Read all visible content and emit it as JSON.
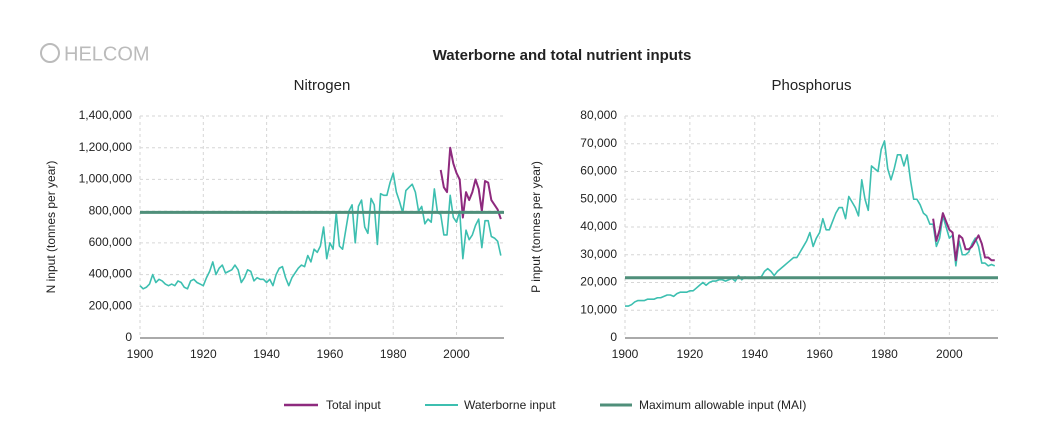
{
  "logo": "HELCOM",
  "title": "Waterborne and total nutrient inputs",
  "chart_data": [
    {
      "type": "line",
      "title": "Nitrogen",
      "y_label": "N input (tonnes per year)",
      "xlim": [
        1900,
        2015
      ],
      "ylim": [
        0,
        1400000
      ],
      "xticks": [
        1900,
        1920,
        1940,
        1960,
        1980,
        2000
      ],
      "yticks": [
        0,
        {
          "value": 200000,
          "label": "200,000"
        },
        {
          "value": 400000,
          "label": "400,000"
        },
        {
          "value": 600000,
          "label": "600,000"
        },
        {
          "value": 800000,
          "label": "800,000"
        },
        {
          "value": 1000000,
          "label": "1,000,000"
        },
        {
          "value": 1200000,
          "label": "1,200,000"
        },
        {
          "value": 1400000,
          "label": "1,400,000"
        }
      ],
      "grid": true,
      "x": [
        1900,
        1901,
        1902,
        1903,
        1904,
        1905,
        1906,
        1907,
        1908,
        1909,
        1910,
        1911,
        1912,
        1913,
        1914,
        1915,
        1916,
        1917,
        1918,
        1919,
        1920,
        1921,
        1922,
        1923,
        1924,
        1925,
        1926,
        1927,
        1928,
        1929,
        1930,
        1931,
        1932,
        1933,
        1934,
        1935,
        1936,
        1937,
        1938,
        1939,
        1940,
        1941,
        1942,
        1943,
        1944,
        1945,
        1946,
        1947,
        1948,
        1949,
        1950,
        1951,
        1952,
        1953,
        1954,
        1955,
        1956,
        1957,
        1958,
        1959,
        1960,
        1961,
        1962,
        1963,
        1964,
        1965,
        1966,
        1967,
        1968,
        1969,
        1970,
        1971,
        1972,
        1973,
        1974,
        1975,
        1976,
        1977,
        1978,
        1979,
        1980,
        1981,
        1982,
        1983,
        1984,
        1985,
        1986,
        1987,
        1988,
        1989,
        1990,
        1991,
        1992,
        1993,
        1994,
        1995,
        1996,
        1997,
        1998,
        1999,
        2000,
        2001,
        2002,
        2003,
        2004,
        2005,
        2006,
        2007,
        2008,
        2009,
        2010,
        2011,
        2012,
        2013,
        2014
      ],
      "series": [
        {
          "name": "Total input",
          "color": "#8e2a7e",
          "x": [
            1995,
            1996,
            1997,
            1998,
            1999,
            2000,
            2001,
            2002,
            2003,
            2004,
            2005,
            2006,
            2007,
            2008,
            2009,
            2010,
            2011,
            2012,
            2013,
            2014
          ],
          "values": [
            1060000,
            950000,
            920000,
            1200000,
            1100000,
            1040000,
            1000000,
            760000,
            920000,
            870000,
            920000,
            1000000,
            940000,
            800000,
            990000,
            980000,
            870000,
            840000,
            810000,
            750000
          ]
        },
        {
          "name": "Waterborne input",
          "color": "#3dbfb0",
          "values": [
            330000,
            310000,
            320000,
            340000,
            400000,
            350000,
            370000,
            360000,
            340000,
            330000,
            340000,
            330000,
            360000,
            350000,
            320000,
            310000,
            360000,
            370000,
            350000,
            340000,
            330000,
            380000,
            420000,
            480000,
            400000,
            440000,
            460000,
            410000,
            420000,
            430000,
            460000,
            430000,
            350000,
            380000,
            430000,
            420000,
            360000,
            380000,
            370000,
            370000,
            350000,
            370000,
            330000,
            400000,
            440000,
            450000,
            380000,
            330000,
            380000,
            410000,
            440000,
            460000,
            450000,
            520000,
            480000,
            560000,
            540000,
            580000,
            700000,
            500000,
            600000,
            560000,
            790000,
            580000,
            560000,
            680000,
            800000,
            840000,
            600000,
            830000,
            870000,
            700000,
            660000,
            880000,
            840000,
            590000,
            910000,
            900000,
            900000,
            980000,
            1040000,
            920000,
            860000,
            790000,
            930000,
            950000,
            970000,
            920000,
            800000,
            830000,
            720000,
            750000,
            730000,
            940000,
            790000,
            780000,
            650000,
            650000,
            900000,
            760000,
            730000,
            800000,
            500000,
            680000,
            620000,
            650000,
            710000,
            750000,
            570000,
            740000,
            740000,
            640000,
            630000,
            610000,
            520000
          ]
        },
        {
          "name": "Maximum allowable input (MAI)",
          "color": "#4f8f7a",
          "value": 792000
        }
      ]
    },
    {
      "type": "line",
      "title": "Phosphorus",
      "y_label": "P input (tonnes per year)",
      "xlim": [
        1900,
        2015
      ],
      "ylim": [
        0,
        80000
      ],
      "xticks": [
        1900,
        1920,
        1940,
        1960,
        1980,
        2000
      ],
      "yticks": [
        0,
        {
          "value": 10000,
          "label": "10,000"
        },
        {
          "value": 20000,
          "label": "20,000"
        },
        {
          "value": 30000,
          "label": "30,000"
        },
        {
          "value": 40000,
          "label": "40,000"
        },
        {
          "value": 50000,
          "label": "50,000"
        },
        {
          "value": 60000,
          "label": "60,000"
        },
        {
          "value": 70000,
          "label": "70,000"
        },
        {
          "value": 80000,
          "label": "80,000"
        }
      ],
      "grid": true,
      "x": [
        1900,
        1901,
        1902,
        1903,
        1904,
        1905,
        1906,
        1907,
        1908,
        1909,
        1910,
        1911,
        1912,
        1913,
        1914,
        1915,
        1916,
        1917,
        1918,
        1919,
        1920,
        1921,
        1922,
        1923,
        1924,
        1925,
        1926,
        1927,
        1928,
        1929,
        1930,
        1931,
        1932,
        1933,
        1934,
        1935,
        1936,
        1937,
        1938,
        1939,
        1940,
        1941,
        1942,
        1943,
        1944,
        1945,
        1946,
        1947,
        1948,
        1949,
        1950,
        1951,
        1952,
        1953,
        1954,
        1955,
        1956,
        1957,
        1958,
        1959,
        1960,
        1961,
        1962,
        1963,
        1964,
        1965,
        1966,
        1967,
        1968,
        1969,
        1970,
        1971,
        1972,
        1973,
        1974,
        1975,
        1976,
        1977,
        1978,
        1979,
        1980,
        1981,
        1982,
        1983,
        1984,
        1985,
        1986,
        1987,
        1988,
        1989,
        1990,
        1991,
        1992,
        1993,
        1994,
        1995,
        1996,
        1997,
        1998,
        1999,
        2000,
        2001,
        2002,
        2003,
        2004,
        2005,
        2006,
        2007,
        2008,
        2009,
        2010,
        2011,
        2012,
        2013,
        2014
      ],
      "series": [
        {
          "color": "#8e2a7e",
          "x": [
            1995,
            1996,
            1997,
            1998,
            1999,
            2000,
            2001,
            2002,
            2003,
            2004,
            2005,
            2006,
            2007,
            2008,
            2009,
            2010,
            2011,
            2012,
            2013,
            2014
          ],
          "values": [
            43000,
            35000,
            39000,
            45000,
            42000,
            39000,
            38000,
            28000,
            37000,
            36000,
            32000,
            32000,
            33000,
            35000,
            37000,
            34000,
            29000,
            29000,
            28000,
            28000
          ]
        },
        {
          "color": "#3dbfb0",
          "values": [
            11500,
            11500,
            12000,
            13000,
            13500,
            13500,
            13500,
            14000,
            14000,
            14000,
            14500,
            14500,
            15000,
            15500,
            15500,
            15000,
            16000,
            16500,
            16500,
            16500,
            17000,
            17000,
            18000,
            19000,
            20000,
            19000,
            20000,
            20500,
            20500,
            21000,
            21000,
            20500,
            21000,
            21500,
            20500,
            22500,
            21000,
            22000,
            21500,
            21500,
            21500,
            22000,
            22000,
            24000,
            25000,
            24000,
            22500,
            24000,
            25000,
            26000,
            27000,
            28000,
            29000,
            29000,
            31000,
            33000,
            35000,
            38000,
            33000,
            36000,
            38000,
            43000,
            39000,
            39000,
            42000,
            45000,
            47000,
            47000,
            43000,
            51000,
            49000,
            47000,
            44000,
            57000,
            50000,
            46000,
            62000,
            61000,
            60000,
            68000,
            71000,
            61000,
            57000,
            61000,
            66000,
            66000,
            62000,
            66000,
            57000,
            50000,
            50000,
            48000,
            45000,
            44000,
            41000,
            41000,
            33000,
            36000,
            44000,
            40000,
            36000,
            37000,
            26000,
            35000,
            30000,
            30000,
            31000,
            34000,
            36000,
            33000,
            27000,
            27000,
            26000,
            26500,
            26000
          ]
        },
        {
          "color": "#4f8f7a",
          "value": 21700
        }
      ]
    }
  ]
}
